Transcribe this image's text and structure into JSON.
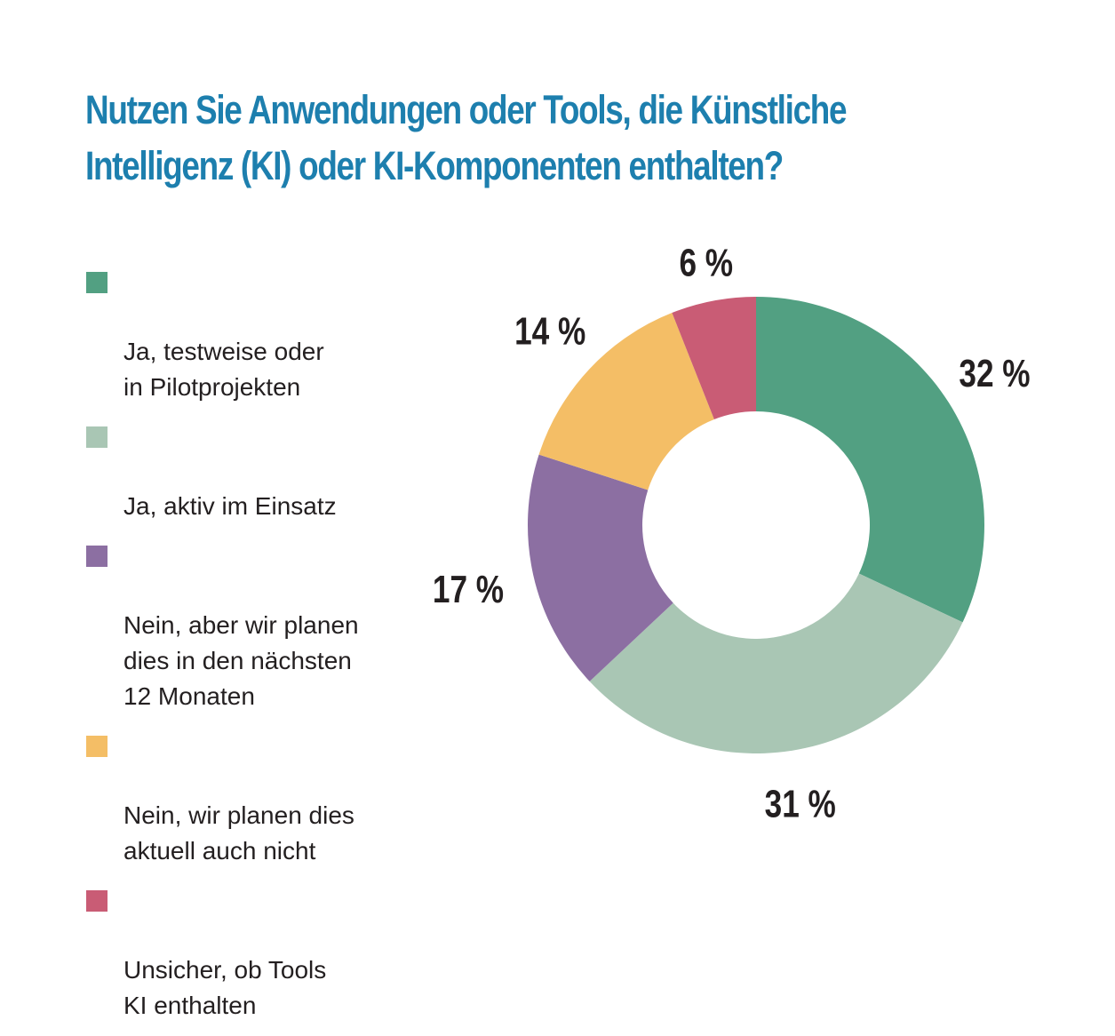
{
  "title": {
    "line1": "Nutzen Sie Anwendungen oder Tools, die Künstliche",
    "line2": "Intelligenz (KI) oder KI-Komponenten enthalten?"
  },
  "chart_data": {
    "type": "pie",
    "donut": true,
    "title": "Nutzen Sie Anwendungen oder Tools, die Künstliche Intelligenz (KI) oder KI-Komponenten enthalten?",
    "legend_placement": "left",
    "categories": [
      "Ja, testweise oder in Pilotprojekten",
      "Ja, aktiv im Einsatz",
      "Nein, aber wir planen dies in den nächsten 12 Monaten",
      "Nein, wir planen dies aktuell auch nicht",
      "Unsicher, ob Tools KI enthalten"
    ],
    "values": [
      32,
      31,
      17,
      14,
      6
    ],
    "labels": [
      "32 %",
      "31 %",
      "17 %",
      "14 %",
      "6 %"
    ],
    "colors": [
      "#52a082",
      "#a9c6b4",
      "#8c6fa2",
      "#f4be66",
      "#c95c75"
    ]
  },
  "legend": {
    "items": [
      {
        "text": "Ja, testweise oder\nin Pilotprojekten",
        "color": "#52a082"
      },
      {
        "text": "Ja, aktiv im Einsatz",
        "color": "#a9c6b4"
      },
      {
        "text": "Nein, aber wir planen\ndies in den nächsten\n12 Monaten",
        "color": "#8c6fa2"
      },
      {
        "text": "Nein, wir planen dies\naktuell auch nicht",
        "color": "#f4be66"
      },
      {
        "text": "Unsicher, ob Tools\nKI enthalten",
        "color": "#c95c75"
      }
    ]
  }
}
